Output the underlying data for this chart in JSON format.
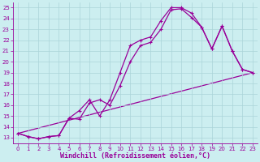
{
  "xlabel": "Windchill (Refroidissement éolien,°C)",
  "xlim": [
    -0.5,
    23.5
  ],
  "ylim": [
    12.5,
    25.5
  ],
  "xticks": [
    0,
    1,
    2,
    3,
    4,
    5,
    6,
    7,
    8,
    9,
    10,
    11,
    12,
    13,
    14,
    15,
    16,
    17,
    18,
    19,
    20,
    21,
    22,
    23
  ],
  "yticks": [
    13,
    14,
    15,
    16,
    17,
    18,
    19,
    20,
    21,
    22,
    23,
    24,
    25
  ],
  "bg_color": "#cceef0",
  "line_color": "#990099",
  "grid_color": "#aad4d8",
  "line1_x": [
    0,
    1,
    2,
    3,
    4,
    5,
    6,
    7,
    8,
    9,
    10,
    11,
    12,
    13,
    14,
    15,
    16,
    17,
    18,
    19,
    20,
    21,
    22,
    23
  ],
  "line1_y": [
    13.4,
    13.1,
    12.9,
    13.1,
    13.2,
    14.8,
    15.5,
    16.5,
    15.0,
    16.5,
    19.0,
    21.5,
    22.0,
    22.3,
    23.8,
    25.0,
    25.0,
    24.5,
    23.2,
    21.2,
    23.3,
    21.0,
    19.3,
    19.0
  ],
  "line2_x": [
    0,
    1,
    2,
    3,
    4,
    5,
    6,
    7,
    8,
    9,
    10,
    11,
    12,
    13,
    14,
    15,
    16,
    17,
    18,
    19,
    20,
    21,
    22,
    23
  ],
  "line2_y": [
    13.4,
    13.1,
    12.9,
    13.1,
    13.2,
    14.8,
    14.7,
    16.2,
    16.5,
    16.0,
    17.8,
    20.0,
    21.5,
    21.8,
    23.0,
    24.8,
    24.9,
    24.1,
    23.2,
    21.2,
    23.3,
    21.0,
    19.3,
    19.0
  ],
  "line3_x": [
    0,
    23
  ],
  "line3_y": [
    13.4,
    19.0
  ],
  "tick_fontsize": 5,
  "xlabel_fontsize": 6,
  "lw": 0.9,
  "marker_size": 2.5
}
